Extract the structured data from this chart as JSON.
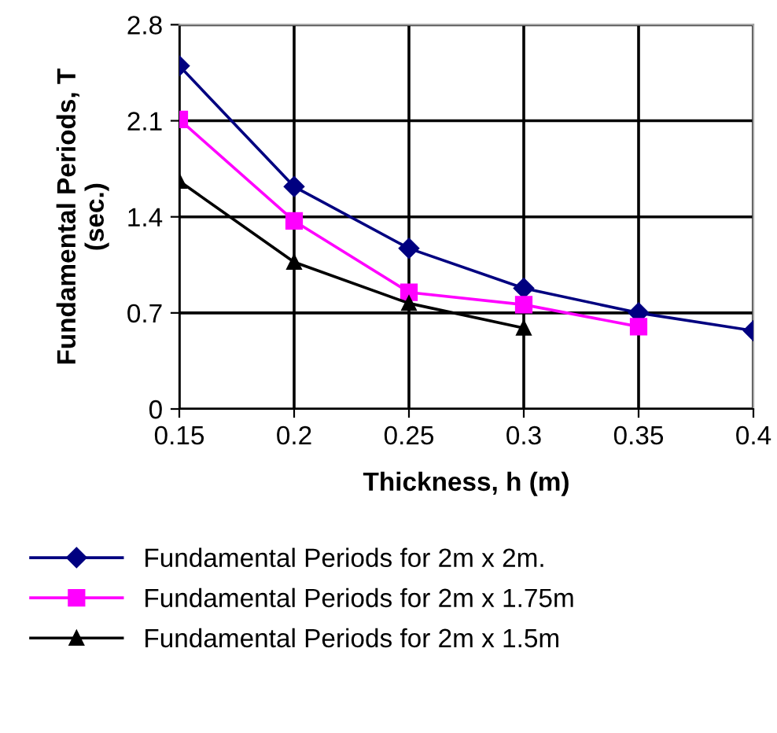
{
  "chart_data": {
    "type": "line",
    "xlabel": "Thickness, h (m)",
    "ylabel": "Fundamental Periods, T\n(sec.)",
    "x": [
      0.15,
      0.2,
      0.25,
      0.3,
      0.35,
      0.4
    ],
    "series": [
      {
        "name": "Fundamental Periods for 2m x 2m.",
        "color": "#000080",
        "marker": "diamond",
        "values": [
          2.5,
          1.62,
          1.17,
          0.88,
          0.7,
          0.57
        ]
      },
      {
        "name": "Fundamental Periods for 2m x 1.75m",
        "color": "#ff00ff",
        "marker": "square",
        "values": [
          2.11,
          1.37,
          0.85,
          0.76,
          0.6,
          null
        ]
      },
      {
        "name": "Fundamental Periods for 2m x 1.5m",
        "color": "#000000",
        "marker": "triangle",
        "values": [
          1.66,
          1.07,
          0.77,
          0.59,
          null,
          null
        ]
      }
    ],
    "xlim": [
      0.15,
      0.4
    ],
    "xticks": [
      0.15,
      0.2,
      0.25,
      0.3,
      0.35,
      0.4
    ],
    "ylim": [
      0,
      2.8
    ],
    "yticks": [
      0,
      0.7,
      1.4,
      2.1,
      2.8
    ],
    "grid": true,
    "legend": "bottom",
    "line_style": "solid"
  }
}
